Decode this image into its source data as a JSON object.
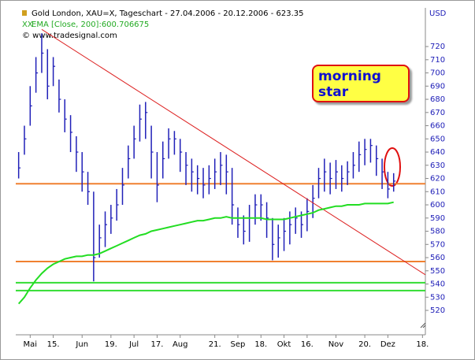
{
  "chart_data": {
    "type": "ohlc",
    "title": "Gold London, XAU=X, Tageschart - 27.04.2006 - 20.12.2006 - 623.35",
    "color": "#2020b8",
    "categories": [
      null,
      null,
      "Mai",
      null,
      null,
      null,
      "15.",
      null,
      null,
      null,
      null,
      "Jun",
      null,
      null,
      null,
      null,
      "19.",
      null,
      null,
      null,
      "Jul",
      null,
      null,
      null,
      "17.",
      null,
      null,
      null,
      "Aug",
      null,
      null,
      null,
      null,
      null,
      "21.",
      null,
      null,
      null,
      "Sep",
      null,
      null,
      null,
      "18.",
      null,
      null,
      null,
      "Okt",
      null,
      null,
      null,
      "16.",
      null,
      null,
      null,
      null,
      "Nov",
      null,
      null,
      null,
      null,
      "20.",
      null,
      null,
      null,
      "Dez",
      null,
      null,
      null,
      null,
      null,
      "18."
    ],
    "high": [
      640,
      660,
      690,
      712,
      730,
      718,
      712,
      695,
      680,
      668,
      652,
      640,
      625,
      610,
      585,
      595,
      600,
      612,
      628,
      645,
      660,
      676,
      678,
      660,
      640,
      648,
      658,
      656,
      650,
      640,
      635,
      630,
      628,
      630,
      635,
      640,
      638,
      628,
      598,
      592,
      600,
      608,
      608,
      602,
      590,
      585,
      590,
      595,
      598,
      595,
      605,
      615,
      628,
      635,
      632,
      634,
      630,
      633,
      640,
      648,
      650,
      650,
      645,
      635,
      625,
      624,
      null,
      null,
      null,
      null,
      null
    ],
    "low": [
      620,
      638,
      660,
      685,
      700,
      680,
      690,
      670,
      655,
      640,
      625,
      610,
      600,
      542,
      560,
      568,
      578,
      588,
      600,
      620,
      635,
      648,
      650,
      620,
      602,
      620,
      635,
      638,
      625,
      615,
      610,
      608,
      605,
      608,
      612,
      615,
      608,
      585,
      575,
      570,
      572,
      585,
      588,
      575,
      558,
      560,
      565,
      570,
      578,
      575,
      580,
      590,
      605,
      610,
      608,
      612,
      610,
      615,
      620,
      625,
      630,
      632,
      622,
      612,
      605,
      610,
      null,
      null,
      null,
      null,
      null
    ],
    "close": [
      628,
      650,
      675,
      700,
      715,
      690,
      705,
      680,
      665,
      655,
      640,
      625,
      610,
      560,
      575,
      585,
      590,
      600,
      615,
      635,
      650,
      665,
      670,
      640,
      615,
      635,
      650,
      650,
      640,
      630,
      625,
      620,
      615,
      620,
      625,
      630,
      625,
      600,
      585,
      580,
      590,
      600,
      600,
      590,
      570,
      575,
      580,
      585,
      590,
      585,
      595,
      605,
      620,
      625,
      620,
      625,
      620,
      625,
      630,
      638,
      642,
      645,
      635,
      625,
      612,
      618,
      null,
      null,
      null,
      null,
      null
    ],
    "ema": {
      "name": "EMA [Close, 200]:600.706675",
      "color": "#22dd22",
      "values": [
        525,
        530,
        537,
        543,
        548,
        552,
        555,
        557,
        559,
        560,
        561,
        561,
        562,
        562,
        563,
        565,
        567,
        569,
        571,
        573,
        575,
        577,
        578,
        580,
        581,
        582,
        583,
        584,
        585,
        586,
        587,
        588,
        588,
        589,
        590,
        590,
        591,
        590,
        590,
        590,
        590,
        590,
        590,
        589,
        589,
        589,
        589,
        590,
        591,
        592,
        593,
        594,
        596,
        597,
        598,
        599,
        599,
        600,
        600,
        600,
        601,
        601,
        601,
        601,
        601,
        602,
        null,
        null,
        null,
        null,
        null
      ]
    },
    "hlines": [
      {
        "value": 616,
        "color": "#f08030"
      },
      {
        "value": 557,
        "color": "#f08030"
      },
      {
        "value": 541,
        "color": "#33dd33"
      },
      {
        "value": 535,
        "color": "#33dd33"
      }
    ],
    "trendline": {
      "values": [
        733,
        547
      ],
      "color": "#dd2222"
    },
    "annotation": "morning star",
    "copyright": "© www.tradesignal.com",
    "y_unit": "USD",
    "ylim": [
      501.5,
      749.3
    ],
    "yticks": [
      520,
      530,
      540,
      550,
      560,
      570,
      580,
      590,
      600,
      610,
      620,
      630,
      640,
      650,
      660,
      670,
      680,
      690,
      700,
      710,
      720
    ]
  }
}
